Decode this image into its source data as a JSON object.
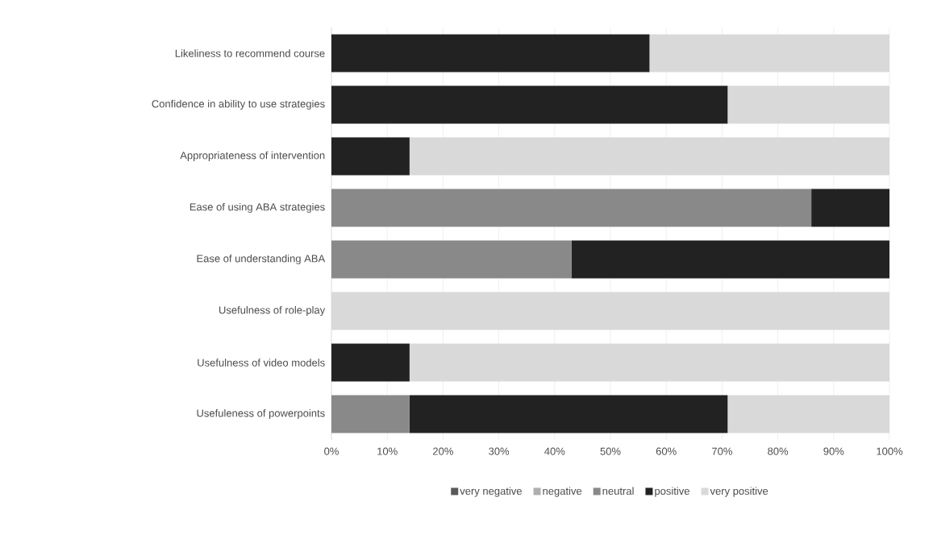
{
  "chart_data": {
    "type": "bar",
    "orientation": "horizontal",
    "stacked": true,
    "categories": [
      "Likeliness to recommend course",
      "Confidence in ability to use strategies",
      "Appropriateness of intervention",
      "Ease of using ABA strategies",
      "Ease of understanding ABA",
      "Usefulness of role-play",
      "Usefulness of video models",
      "Usefuleness of powerpoints"
    ],
    "series": [
      {
        "name": "very negative",
        "color": "#595959",
        "values": [
          0,
          0,
          0,
          0,
          0,
          0,
          0,
          0
        ]
      },
      {
        "name": "negative",
        "color": "#afafaf",
        "values": [
          0,
          0,
          0,
          0,
          0,
          0,
          0,
          0
        ]
      },
      {
        "name": "neutral",
        "color": "#898989",
        "values": [
          0,
          0,
          0,
          86,
          43,
          0,
          0,
          14
        ]
      },
      {
        "name": "positive",
        "color": "#222222",
        "values": [
          57,
          71,
          14,
          14,
          57,
          0,
          14,
          57
        ]
      },
      {
        "name": "very positive",
        "color": "#d9d9d9",
        "values": [
          43,
          29,
          86,
          0,
          0,
          100,
          86,
          29
        ]
      }
    ],
    "xlim": [
      0,
      100
    ],
    "xticks": [
      {
        "value": 0,
        "label": "0%"
      },
      {
        "value": 10,
        "label": "10%"
      },
      {
        "value": 20,
        "label": "20%"
      },
      {
        "value": 30,
        "label": "30%"
      },
      {
        "value": 40,
        "label": "40%"
      },
      {
        "value": 50,
        "label": "50%"
      },
      {
        "value": 60,
        "label": "60%"
      },
      {
        "value": 70,
        "label": "70%"
      },
      {
        "value": 80,
        "label": "80%"
      },
      {
        "value": 90,
        "label": "90%"
      },
      {
        "value": 100,
        "label": "100%"
      }
    ],
    "grid": "x",
    "legend": "bottom"
  }
}
